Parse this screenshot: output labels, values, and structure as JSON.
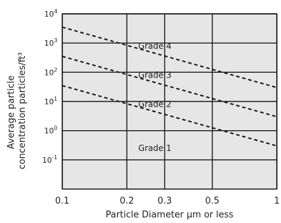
{
  "chart_data": {
    "type": "line",
    "title": "",
    "xlabel": "Particle Diameter μm or less",
    "ylabel_lines": [
      "Average particle",
      "concentration particles/ft³"
    ],
    "x_scale": "log",
    "y_scale": "log",
    "xlim": [
      0.1,
      1
    ],
    "ylim": [
      0.01,
      10000
    ],
    "x_ticks": [
      {
        "value": 0.1,
        "label": "0.1"
      },
      {
        "value": 0.2,
        "label": "0.2"
      },
      {
        "value": 0.3,
        "label": "0.3"
      },
      {
        "value": 0.5,
        "label": "0.5"
      },
      {
        "value": 1,
        "label": "1"
      }
    ],
    "y_ticks": [
      {
        "value": 10000,
        "base": "10",
        "exp": "4"
      },
      {
        "value": 1000,
        "base": "10",
        "exp": "3"
      },
      {
        "value": 100,
        "base": "10",
        "exp": "2"
      },
      {
        "value": 10,
        "base": "10",
        "exp": "1"
      },
      {
        "value": 1,
        "base": "10",
        "exp": "0"
      },
      {
        "value": 0.1,
        "base": "10",
        "exp": "-1"
      }
    ],
    "grid": true,
    "background_color": "#e6e6e6",
    "line_color": "#1a1a1a",
    "series": [
      {
        "x": [
          0.1,
          1
        ],
        "y": [
          3500,
          30
        ]
      },
      {
        "x": [
          0.1,
          1
        ],
        "y": [
          350,
          3
        ]
      },
      {
        "x": [
          0.1,
          1
        ],
        "y": [
          35,
          0.3
        ]
      }
    ],
    "annotations": [
      {
        "text": "Grade 4",
        "x": 0.27,
        "y": 800
      },
      {
        "text": "Grade 3",
        "x": 0.27,
        "y": 80
      },
      {
        "text": "Grade 2",
        "x": 0.27,
        "y": 8
      },
      {
        "text": "Grade 1",
        "x": 0.27,
        "y": 0.25
      }
    ]
  }
}
